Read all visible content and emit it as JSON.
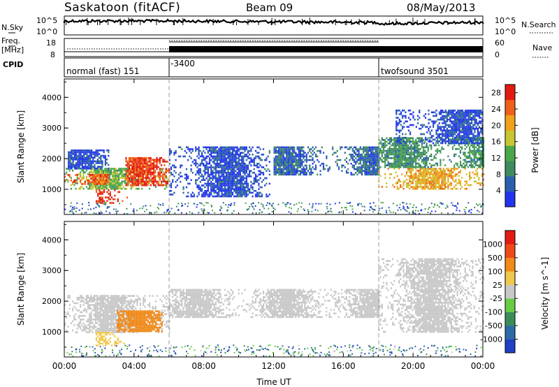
{
  "header": {
    "station": "Saskatoon (fitACF)",
    "beam": "Beam 09",
    "date": "08/May/2013"
  },
  "noise_panel": {
    "left_label": "N.Sky",
    "left_ticks": [
      "10^5",
      "10^0"
    ],
    "right_label": "N.Search",
    "right_ticks": [
      "10^5",
      "10^0"
    ]
  },
  "freq_panel": {
    "left_label_1": "Freq.",
    "left_label_2": "[MHz]",
    "left_ticks": [
      "18",
      "8"
    ],
    "right_label": "Nave",
    "right_ticks": [
      "60",
      "0"
    ]
  },
  "cpid_panel": {
    "label": "CPID",
    "segments": [
      {
        "text": "normal (fast) 151",
        "start_hour": 0
      },
      {
        "text": "-3400",
        "start_hour": 6
      },
      {
        "text": "twofsound 3501",
        "start_hour": 18
      }
    ]
  },
  "x_axis": {
    "label": "Time UT",
    "ticks": [
      "00:00",
      "04:00",
      "08:00",
      "12:00",
      "16:00",
      "20:00",
      "00:00"
    ]
  },
  "chart_data": [
    {
      "type": "heatmap",
      "quantity": "power",
      "xlabel": "Time UT",
      "ylabel": "Slant Range [km]",
      "xlim": [
        0,
        24
      ],
      "ylim": [
        180,
        4600
      ],
      "y_ticks": [
        "1000",
        "2000",
        "3000",
        "4000"
      ],
      "colorbar": {
        "label": "Power [dB]",
        "ticks": [
          "4",
          "8",
          "12",
          "16",
          "20",
          "24",
          "28"
        ],
        "range": [
          0,
          30
        ],
        "colors": [
          "#2433f0",
          "#2a5fb0",
          "#3f8a5f",
          "#4aa84a",
          "#c8c632",
          "#f0a21a",
          "#f0601a",
          "#e21a12"
        ]
      },
      "regions": [
        {
          "t0": 0.0,
          "t1": 6.0,
          "r0": 1000,
          "r1": 1700,
          "level": 14
        },
        {
          "t0": 1.8,
          "t1": 3.6,
          "r0": 550,
          "r1": 1000,
          "level": 28
        },
        {
          "t0": 3.5,
          "t1": 6.0,
          "r0": 1150,
          "r1": 2050,
          "level": 26
        },
        {
          "t0": 0.0,
          "t1": 2.5,
          "r0": 1150,
          "r1": 1500,
          "level": 24
        },
        {
          "t0": 0.2,
          "t1": 2.5,
          "r0": 1700,
          "r1": 2300,
          "level": 4
        },
        {
          "t0": 6.0,
          "t1": 11.8,
          "r0": 800,
          "r1": 2400,
          "level": 4
        },
        {
          "t0": 12.0,
          "t1": 18.0,
          "r0": 1500,
          "r1": 2400,
          "level": 6
        },
        {
          "t0": 18.0,
          "t1": 24.0,
          "r0": 1000,
          "r1": 1700,
          "level": 20
        },
        {
          "t0": 18.0,
          "t1": 24.0,
          "r0": 1700,
          "r1": 2700,
          "level": 10
        },
        {
          "t0": 19.0,
          "t1": 24.0,
          "r0": 2500,
          "r1": 3600,
          "level": 4
        }
      ]
    },
    {
      "type": "heatmap",
      "quantity": "velocity",
      "xlabel": "Time UT",
      "ylabel": "Slant Range [km]",
      "xlim": [
        0,
        24
      ],
      "ylim": [
        180,
        4600
      ],
      "y_ticks": [
        "1000",
        "2000",
        "3000",
        "4000"
      ],
      "colorbar": {
        "label": "Velocity [m s^-1]",
        "ticks": [
          "1000",
          "500",
          "100",
          "25",
          "-25",
          "-100",
          "-500",
          "-1000"
        ],
        "range": [
          -1200,
          1200
        ],
        "colors": [
          "#1f3fc4",
          "#2c6aa8",
          "#3c8c58",
          "#66cc44",
          "#c8c8c8",
          "#f0c84c",
          "#f08a1a",
          "#f04818",
          "#e21a12"
        ]
      },
      "regions": [
        {
          "t0": 0.0,
          "t1": 6.0,
          "r0": 1000,
          "r1": 2200,
          "level": 0
        },
        {
          "t0": 1.8,
          "t1": 3.6,
          "r0": 550,
          "r1": 1000,
          "level": 200
        },
        {
          "t0": 3.0,
          "t1": 5.6,
          "r0": 1000,
          "r1": 1700,
          "level": 500
        },
        {
          "t0": 6.0,
          "t1": 18.0,
          "r0": 1500,
          "r1": 2400,
          "level": 0
        },
        {
          "t0": 18.0,
          "t1": 24.0,
          "r0": 1000,
          "r1": 3400,
          "level": 0
        }
      ]
    }
  ]
}
